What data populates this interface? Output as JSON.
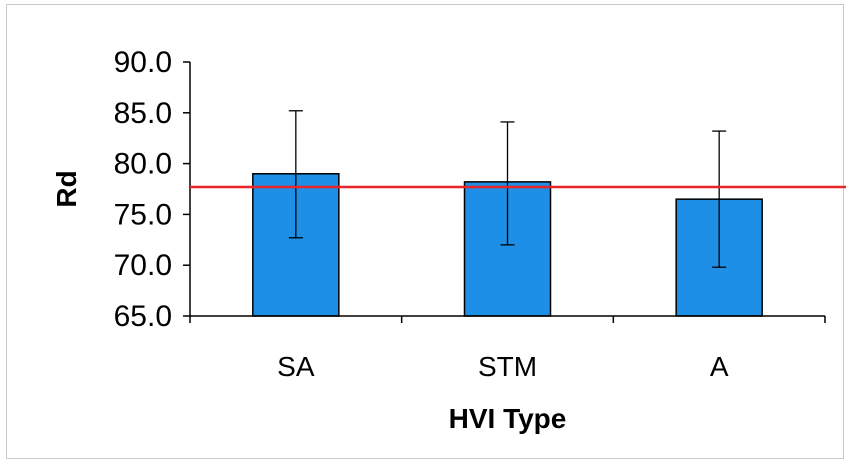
{
  "chart_data": {
    "type": "bar",
    "title": "",
    "xlabel": "HVI Type",
    "ylabel": "Rd",
    "categories": [
      "SA",
      "STM",
      "A"
    ],
    "values": [
      79.0,
      78.2,
      76.5
    ],
    "error_low": [
      72.7,
      72.0,
      69.8
    ],
    "error_high": [
      85.2,
      84.1,
      83.2
    ],
    "reference_line": 77.7,
    "ylim": [
      65.0,
      90.0
    ],
    "yticks": [
      65.0,
      70.0,
      75.0,
      80.0,
      85.0,
      90.0
    ],
    "ytick_labels": [
      "65.0",
      "70.0",
      "75.0",
      "80.0",
      "85.0",
      "90.0"
    ],
    "grid": false,
    "legend": "none",
    "bar_color": "#1E8FE6",
    "bar_edge_color": "#000000",
    "reference_line_color": "#E8262A"
  }
}
